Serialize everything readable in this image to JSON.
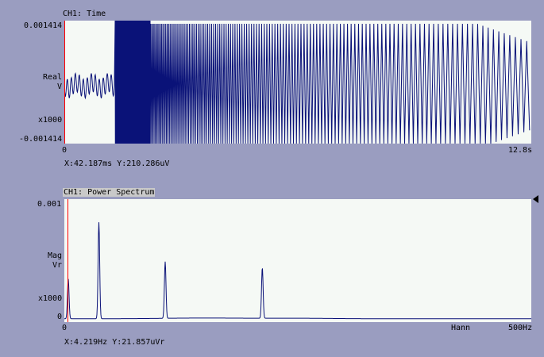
{
  "time_panel": {
    "title": "CH1: Time",
    "y_max_label": "0.001414",
    "y_min_label": "-0.001414",
    "y_unit_line1": "Real",
    "y_unit_line2": "V",
    "y_scale": "x1000",
    "x_min_label": "0",
    "x_max_label": "12.8s",
    "cursor_readout": "X:42.187ms Y:210.286uV",
    "trace_color": "#0a1278",
    "cursor_color": "#ff0000"
  },
  "spectrum_panel": {
    "title": "CH1: Power Spectrum",
    "y_max_label": "0.001",
    "y_min_label": "0",
    "y_unit_line1": "Mag",
    "y_unit_line2": "Vr",
    "y_scale": "x1000",
    "x_min_label": "0",
    "x_max_label": "500Hz",
    "window_label": "Hann",
    "cursor_readout": "X:4.219Hz Y:21.857uVr",
    "trace_color": "#0a1278",
    "cursor_color": "#ff0000",
    "peaks": [
      {
        "freq_hz": 4.2,
        "mag": 0.33
      },
      {
        "freq_hz": 37,
        "mag": 0.8
      },
      {
        "freq_hz": 108,
        "mag": 0.47
      },
      {
        "freq_hz": 212,
        "mag": 0.42
      }
    ]
  },
  "background_color": "#9a9dc0",
  "plot_background_color": "#f5f9f5"
}
